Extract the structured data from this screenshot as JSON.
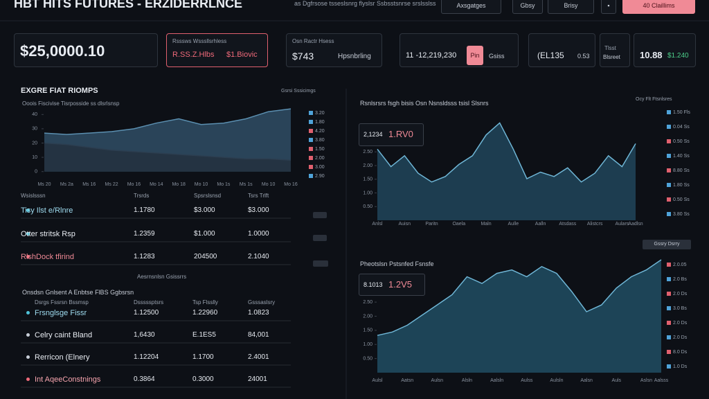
{
  "header": {
    "title": "HBT HITS FUTURES - ERZIDERRLNCE",
    "nav": "as Dgfrsose tsseslsnrg flyslsr Ssbsstsnrse srslsslss",
    "buttons": [
      "Axsgatges",
      "Gbsy",
      "Brisy"
    ],
    "cta": "40 Claillims"
  },
  "stats": [
    {
      "value": "$25,0000.10"
    },
    {
      "label": "Rsssws Wsssllsrhless",
      "value": "R.SS.Z.Hlbs",
      "change": "$1.Biovic"
    },
    {
      "label": "Osn Ractr Hsess",
      "value": "$743",
      "change": "Hpsnbrling"
    },
    {
      "value": "11 -12,219,230",
      "badge": "Pin",
      "change": "Gsiss"
    },
    {
      "value": "(EL135",
      "change": "0.53"
    },
    {
      "label": "Tlsst",
      "change": "Blsreet"
    },
    {
      "value": "10.88",
      "change": "$1.240"
    }
  ],
  "panel_left": {
    "title": "EXGRE FIAT RIOMPS",
    "action": "Gsrsi Sssicimgs",
    "subtitle": "Ooois Fiscivise Tisrposside ss dlsrlsnsp"
  },
  "table_1": {
    "columns": [
      "Wsislsssn",
      "Trsrds",
      "Spsrslsnsd",
      "Tsrs Trlft"
    ],
    "rows": [
      [
        "Tisy Ilst e/Rlnre",
        "1.1780",
        "$3.000",
        "$3.000"
      ],
      [
        "Otter stritsk Rsp",
        "1.2359",
        "$1.000",
        "1.0000"
      ],
      [
        "RlshDock tfirind",
        "1.1283",
        "204500",
        "2.1040"
      ]
    ],
    "dot_colors": [
      "#4fc3d9",
      "#4fc3d9",
      "#f06a7a"
    ],
    "name_colors": [
      "#9fdcf0",
      "#e8ecf2",
      "#f08a96"
    ],
    "footer": "Aesrnsnlsn Gsissrrs"
  },
  "table_2": {
    "title": "Onsdsn Gnlsent A Enbtse FlBS Ggbsrsn",
    "columns": [
      "Dsrgs Fssrsn Bssmsp",
      "Dsssssptsrs",
      "Tsp Flsslly",
      "Gsssaslsry"
    ],
    "rows": [
      [
        "Frsnglsge Fissr",
        "1.12500",
        "1.22960",
        "1.0823"
      ],
      [
        "Celry caint Bland",
        "1,6430",
        "E.1ES5",
        "84,001"
      ],
      [
        "Rerricon (Elnery",
        "1.12204",
        "1.1700",
        "2.4001"
      ],
      [
        "Int AqeeConstnings",
        "0.3864",
        "0.3000",
        "24001"
      ]
    ],
    "dot_colors": [
      "#4fc3d9",
      "#c8ced8",
      "#c8ced8",
      "#f06a7a"
    ],
    "name_colors": [
      "#9fdcf0",
      "#e8ecf2",
      "#e8ecf2",
      "#f6a4ae"
    ]
  },
  "chart_data": [
    {
      "type": "area",
      "categories": [
        "Ms 20",
        "Ms 2a",
        "Ms 16",
        "Ms 22",
        "Mo 16",
        "Mo 14",
        "Mo 18",
        "Mo 10",
        "Mo 1s",
        "Ms 1s",
        "Mo 10",
        "Mo 16"
      ],
      "series": [
        {
          "color": "#5b8fb0",
          "fill": "#2e4a60",
          "values": [
            27,
            26,
            27,
            28,
            30,
            34,
            37,
            33,
            34,
            37,
            42,
            44
          ]
        },
        {
          "color": "#2c3e50",
          "fill": "#24323f",
          "values": [
            20,
            19,
            17,
            15,
            14,
            13,
            12,
            11,
            10,
            9,
            9,
            8
          ]
        }
      ],
      "ylim": [
        -5,
        45
      ],
      "yticks": [
        40,
        30,
        20,
        10,
        0
      ],
      "legend": [
        {
          "label": "3.20",
          "color": "#4fa3d9"
        },
        {
          "label": "1.80",
          "color": "#4fa3d9"
        },
        {
          "label": "4.20",
          "color": "#e0606e"
        },
        {
          "label": "3.80",
          "color": "#4fa3d9"
        },
        {
          "label": "1.50",
          "color": "#e0606e"
        },
        {
          "label": "2.00",
          "color": "#e0606e"
        },
        {
          "label": "3.00",
          "color": "#e0606e"
        },
        {
          "label": "2.90",
          "color": "#4fa3d9"
        }
      ]
    },
    {
      "type": "area",
      "title": "Rsnlsrsrs fsgh bisis Osn Nsnsldsss tsisl Slsnrs",
      "action": "Ocy Flt Ftsnlsres",
      "annotations": [
        "2,1234",
        "1.RV0"
      ],
      "button": "Gssry Dsrry",
      "categories": [
        "Anlsl",
        null,
        "Auisn",
        null,
        "Paritn",
        null,
        "Oaela",
        null,
        "Maln",
        null,
        "Aulle",
        null,
        "Aalln",
        null,
        "Atsdass",
        null,
        "Alistcrs",
        null,
        "Aulars",
        "Aadlsn"
      ],
      "series": [
        {
          "color": "#6fb6d6",
          "fill": "#1f4257",
          "values": [
            2.6,
            1.96,
            2.36,
            1.72,
            1.4,
            1.6,
            2.04,
            2.36,
            3.12,
            3.56,
            2.6,
            1.52,
            1.76,
            1.6,
            1.92,
            1.4,
            1.72,
            2.36,
            1.96,
            2.8
          ]
        }
      ],
      "ylim": [
        0,
        4
      ],
      "yticks": [
        {
          "value": 2.5,
          "label": "2.50"
        },
        {
          "value": 2,
          "label": "2.00"
        },
        {
          "value": 1.5,
          "label": "1.50"
        },
        {
          "value": 1,
          "label": "1.00"
        },
        {
          "value": 0.5,
          "label": "0.50"
        }
      ],
      "legend": [
        {
          "label": "1.50 Fls",
          "color": "#4fa3d9"
        },
        {
          "label": "0.04 Ss",
          "color": "#4fa3d9"
        },
        {
          "label": "0.50 Ss",
          "color": "#e0606e"
        },
        {
          "label": "1.40 Ss",
          "color": "#4fa3d9"
        },
        {
          "label": "8.80 Ss",
          "color": "#e0606e"
        },
        {
          "label": "1.80 Ss",
          "color": "#4fa3d9"
        },
        {
          "label": "0.50 Ss",
          "color": "#e0606e"
        },
        {
          "label": "3.80 Ss",
          "color": "#4fa3d9"
        }
      ]
    },
    {
      "type": "area",
      "title": "Pheotslsn Pstsnfed Fsnsfe",
      "annotations": [
        "8.1013",
        "1.2V5"
      ],
      "categories": [
        "Aulsl",
        null,
        "Aatsn",
        null,
        "Aulsn",
        null,
        "Alsln",
        null,
        "Aalsln",
        null,
        "Aulss",
        null,
        "Aulsln",
        null,
        "Aalsn",
        null,
        "Auls",
        null,
        "Aslsn",
        "Aalsss"
      ],
      "series": [
        {
          "color": "#6fb6d6",
          "fill": "#1f4a5e",
          "values": [
            1.32,
            1.44,
            1.68,
            2.04,
            2.4,
            2.76,
            3.4,
            3.16,
            3.52,
            3.64,
            3.4,
            3.76,
            3.52,
            2.88,
            2.16,
            2.4,
            3.0,
            3.4,
            3.64,
            4.0
          ]
        }
      ],
      "ylim": [
        0,
        4
      ],
      "yticks": [
        {
          "value": 2.5,
          "label": "2.50"
        },
        {
          "value": 2,
          "label": "2.00"
        },
        {
          "value": 1.5,
          "label": "1.50"
        },
        {
          "value": 1,
          "label": "1.00"
        },
        {
          "value": 0.5,
          "label": "0.50"
        }
      ],
      "legend": [
        {
          "label": "2.0.05",
          "color": "#e0606e"
        },
        {
          "label": "2.0 Bs",
          "color": "#4fa3d9"
        },
        {
          "label": "2.0 Ds",
          "color": "#e0606e"
        },
        {
          "label": "3.0 Bs",
          "color": "#4fa3d9"
        },
        {
          "label": "2.0 Ds",
          "color": "#e0606e"
        },
        {
          "label": "2.0 Ds",
          "color": "#4fa3d9"
        },
        {
          "label": "8.0 Ds",
          "color": "#e0606e"
        },
        {
          "label": "1.0 Ds",
          "color": "#4fa3d9"
        }
      ]
    }
  ]
}
